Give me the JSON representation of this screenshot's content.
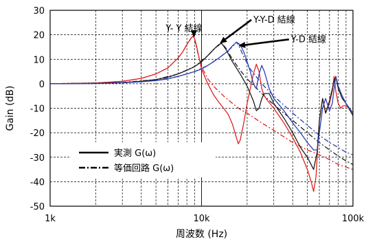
{
  "chart_data": {
    "type": "line",
    "xlabel": "周波数 (Hz)",
    "ylabel": "Gain (dB)",
    "xscale": "log",
    "xlim": [
      1000,
      100000
    ],
    "ylim": [
      -50,
      30
    ],
    "xticks": [
      {
        "v": 1000,
        "label": "1k"
      },
      {
        "v": 10000,
        "label": "10k"
      },
      {
        "v": 100000,
        "label": "100k"
      }
    ],
    "yticks": [
      {
        "v": 30,
        "label": "30"
      },
      {
        "v": 20,
        "label": "20"
      },
      {
        "v": 10,
        "label": "10"
      },
      {
        "v": 0,
        "label": "0"
      },
      {
        "v": -10,
        "label": "-10"
      },
      {
        "v": -20,
        "label": "-20"
      },
      {
        "v": -30,
        "label": "-30"
      },
      {
        "v": -40,
        "label": "-40"
      },
      {
        "v": -50,
        "label": "-50"
      }
    ],
    "grid": true,
    "legend": {
      "position": "bottom-left",
      "entries": [
        {
          "label": "実測 G(ω)",
          "style": "solid"
        },
        {
          "label": "等価回路 G(ω)",
          "style": "dashdot"
        }
      ]
    },
    "annotations": [
      {
        "text": "Y- Y 結線",
        "x": 5800,
        "y": 21.5,
        "arrow_to": [
          8900,
          19
        ]
      },
      {
        "text": "Y-Y-D 結線",
        "x": 22000,
        "y": 25,
        "arrow_to": [
          13200,
          16.5
        ]
      },
      {
        "text": "Y-D 結線",
        "x": 39000,
        "y": 17,
        "arrow_to": [
          17500,
          15.5
        ]
      }
    ],
    "series": [
      {
        "name": "Y-Y measured",
        "color": "#e02020",
        "style": "solid",
        "x": [
          1000,
          2000,
          3000,
          4000,
          5000,
          6000,
          7000,
          7500,
          8000,
          8500,
          8800,
          9000,
          9300,
          9600,
          10000,
          11000,
          12000,
          13000,
          14000,
          15000,
          16000,
          17000,
          17500,
          18000,
          19000,
          20000,
          21000,
          22000,
          23000,
          24000,
          25000,
          26000,
          27000,
          30000,
          35000,
          40000,
          45000,
          50000,
          53000,
          55000,
          57000,
          60000,
          63000,
          66000,
          70000,
          73000,
          75000,
          77000,
          80000,
          83000,
          86000,
          90000,
          95000,
          100000
        ],
        "y": [
          0,
          0.3,
          1,
          2.2,
          4,
          6.5,
          10.5,
          13,
          16,
          18.5,
          19.5,
          18.5,
          15,
          11,
          6,
          0,
          -4.5,
          -7.5,
          -10,
          -12.5,
          -16.5,
          -22,
          -24.5,
          -23,
          -16,
          -8,
          -2,
          4,
          8,
          5,
          -2,
          -5,
          -6.5,
          -10,
          -16,
          -22,
          -28,
          -35,
          -40,
          -44,
          -38,
          -15,
          -6,
          -12,
          -8,
          -3,
          3,
          -3,
          -8,
          -10,
          -9,
          -9,
          -10,
          -12
        ]
      },
      {
        "name": "Y-Y-D measured",
        "color": "#1a1a1a",
        "style": "solid",
        "x": [
          1000,
          2000,
          3000,
          4000,
          5000,
          6000,
          7000,
          8000,
          9000,
          10000,
          11000,
          12000,
          13000,
          13600,
          14500,
          16000,
          18000,
          20000,
          22000,
          23000,
          24000,
          25000,
          26000,
          28000,
          30000,
          35000,
          40000,
          45000,
          50000,
          55000,
          58000,
          60000,
          63000,
          66000,
          70000,
          75000,
          77000,
          80000,
          85000,
          90000,
          100000
        ],
        "y": [
          0,
          0.2,
          0.5,
          1,
          1.7,
          2.7,
          4,
          5.5,
          7,
          9,
          11.5,
          14,
          16,
          16.5,
          14,
          9,
          4,
          -1,
          -7,
          -11,
          -10,
          -6,
          -4,
          -4,
          -8,
          -14,
          -20,
          -26,
          -30,
          -35,
          -28,
          -15,
          -6,
          -12,
          -7,
          1,
          3,
          -2,
          -6,
          -8,
          -13
        ]
      },
      {
        "name": "Y-D measured",
        "color": "#2a3db0",
        "style": "solid",
        "x": [
          1000,
          2000,
          3000,
          4000,
          5000,
          6000,
          7000,
          8000,
          9000,
          10000,
          11000,
          12000,
          13000,
          14000,
          15000,
          16000,
          17000,
          18000,
          19000,
          20000,
          21000,
          22000,
          23000,
          24000,
          25000,
          26000,
          28000,
          30000,
          35000,
          40000,
          45000,
          50000,
          55000,
          58000,
          60000,
          63000,
          66000,
          70000,
          73000,
          75000,
          77000,
          80000,
          85000,
          90000,
          100000
        ],
        "y": [
          0,
          0.1,
          0.4,
          0.8,
          1.3,
          2,
          3,
          4,
          5,
          6,
          7.5,
          9,
          10.5,
          12,
          13.5,
          15.5,
          17,
          16,
          13,
          9,
          5,
          0,
          -2,
          4,
          7.5,
          5,
          -2,
          -6,
          -11,
          -16,
          -20,
          -24,
          -27,
          -27,
          -20,
          -10,
          -6,
          -11,
          -8,
          -2,
          3,
          -1,
          -5,
          -8,
          -12
        ]
      },
      {
        "name": "Y-Y model",
        "color": "#e02020",
        "style": "dashdot",
        "x": [
          1000,
          2000,
          3000,
          4000,
          5000,
          6000,
          7000,
          7500,
          8000,
          8500,
          8800,
          9000,
          9500,
          10000,
          11000,
          12000,
          14000,
          16000,
          18000,
          20000,
          25000,
          30000,
          40000,
          50000,
          60000,
          70000,
          80000,
          90000,
          100000
        ],
        "y": [
          0,
          0.3,
          1,
          2.2,
          4,
          6.5,
          10.5,
          13,
          16,
          18.5,
          19.5,
          18,
          12,
          7,
          2,
          -1,
          -5,
          -8,
          -10.5,
          -12,
          -16,
          -19,
          -24,
          -27,
          -29,
          -31,
          -33,
          -34,
          -35
        ]
      },
      {
        "name": "Y-Y-D model",
        "color": "#1a1a1a",
        "style": "dashdot",
        "x": [
          1000,
          3000,
          5000,
          7000,
          9000,
          11000,
          12500,
          13600,
          14500,
          16000,
          18000,
          20000,
          25000,
          30000,
          40000,
          50000,
          60000,
          70000,
          80000,
          90000,
          100000
        ],
        "y": [
          0,
          0.5,
          1.7,
          4,
          7,
          11.5,
          15,
          16.5,
          14.5,
          10,
          5.5,
          2,
          -4,
          -8.5,
          -15,
          -20,
          -24,
          -27,
          -29.5,
          -31.5,
          -33
        ]
      },
      {
        "name": "Y-D model",
        "color": "#2a3db0",
        "style": "dashdot",
        "x": [
          1000,
          3000,
          5000,
          7000,
          9000,
          11000,
          13000,
          15000,
          16500,
          17000,
          17500,
          19000,
          21000,
          25000,
          30000,
          40000,
          50000,
          60000,
          70000,
          80000,
          90000,
          100000
        ],
        "y": [
          0,
          0.4,
          1.3,
          3,
          5,
          7.5,
          10.5,
          13.5,
          16,
          17,
          16,
          11,
          6,
          0,
          -5,
          -12,
          -17,
          -21,
          -24,
          -26,
          -28,
          -29
        ]
      }
    ]
  }
}
